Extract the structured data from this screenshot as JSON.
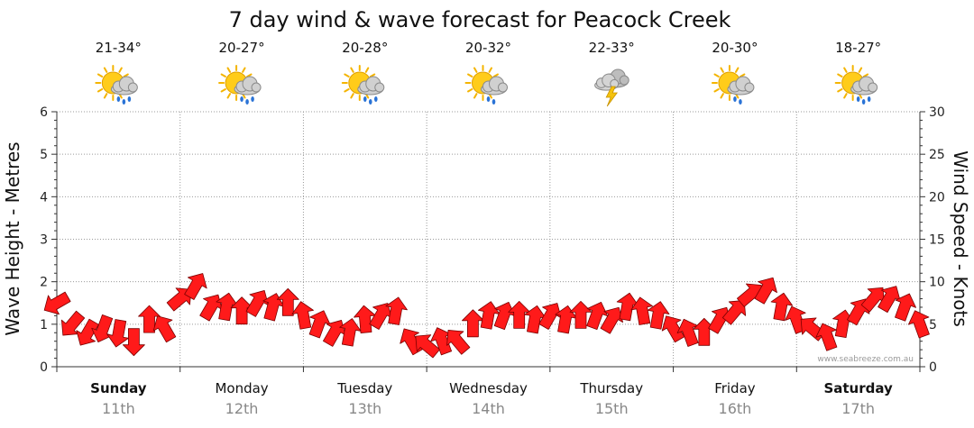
{
  "title": "7 day wind & wave forecast for Peacock Creek",
  "watermark": "www.seabreeze.com.au",
  "colors": {
    "arrow_fill": "#ff1a1a",
    "arrow_stroke": "#7a0000",
    "grid": "#9a9a9a",
    "axis": "#333333"
  },
  "days": [
    {
      "name": "Sunday",
      "date": "11th",
      "temp": "21-34°",
      "icon": "sun-cloud-rain-icon",
      "bold": true
    },
    {
      "name": "Monday",
      "date": "12th",
      "temp": "20-27°",
      "icon": "sun-cloud-rain-icon",
      "bold": false
    },
    {
      "name": "Tuesday",
      "date": "13th",
      "temp": "20-28°",
      "icon": "sun-cloud-rain-icon",
      "bold": false
    },
    {
      "name": "Wednesday",
      "date": "14th",
      "temp": "20-32°",
      "icon": "sun-cloud-drizzle-icon",
      "bold": false
    },
    {
      "name": "Thursday",
      "date": "15th",
      "temp": "22-33°",
      "icon": "thunderstorm-icon",
      "bold": false
    },
    {
      "name": "Friday",
      "date": "16th",
      "temp": "20-30°",
      "icon": "sun-cloud-drizzle-icon",
      "bold": false
    },
    {
      "name": "Saturday",
      "date": "17th",
      "temp": "18-27°",
      "icon": "sun-cloud-rain-icon",
      "bold": true
    }
  ],
  "chart_data": {
    "type": "line",
    "title": "7 day wind & wave forecast for Peacock Creek",
    "ylabel": "Wave Height - Metres",
    "y2label": "Wind Speed - Knots",
    "ylim": [
      0,
      6
    ],
    "y2lim": [
      0,
      30
    ],
    "yticks": [
      "0",
      "1",
      "2",
      "3",
      "4",
      "5",
      "6"
    ],
    "y2ticks": [
      "0",
      "5",
      "10",
      "15",
      "20",
      "25",
      "30"
    ],
    "grid": true,
    "xlim_hours": [
      0,
      168
    ],
    "series": [
      {
        "marker": "wind-arrow",
        "hours": [
          0,
          3,
          6,
          9,
          12,
          15,
          18,
          21,
          24,
          27,
          30,
          33,
          36,
          39,
          42,
          45,
          48,
          51,
          54,
          57,
          60,
          63,
          66,
          69,
          72,
          75,
          78,
          81,
          84,
          87,
          90,
          93,
          96,
          99,
          102,
          105,
          108,
          111,
          114,
          117,
          120,
          123,
          126,
          129,
          132,
          135,
          138,
          141,
          144,
          147,
          150,
          153,
          156,
          159,
          162,
          165,
          168
        ],
        "knots": [
          7.5,
          5,
          4,
          4.5,
          4,
          3,
          5.5,
          4.5,
          8,
          9.5,
          7,
          7,
          6.5,
          7.5,
          7,
          7.5,
          6,
          5,
          4,
          4,
          5.5,
          6,
          6.5,
          3,
          2.5,
          3,
          3,
          5,
          6,
          6,
          6,
          5.5,
          6,
          5.5,
          6,
          6,
          5.5,
          7,
          6.5,
          6,
          4.5,
          4,
          4,
          5.5,
          6.5,
          8.5,
          9,
          7,
          5.5,
          4.5,
          3.5,
          5,
          6.5,
          8,
          8,
          7,
          5
        ],
        "direction_deg": [
          150,
          130,
          120,
          110,
          100,
          90,
          270,
          240,
          320,
          300,
          300,
          280,
          270,
          300,
          285,
          270,
          260,
          290,
          300,
          280,
          265,
          300,
          280,
          240,
          220,
          250,
          230,
          270,
          280,
          290,
          270,
          280,
          300,
          280,
          270,
          290,
          300,
          280,
          260,
          280,
          240,
          250,
          270,
          300,
          310,
          320,
          300,
          280,
          250,
          220,
          250,
          280,
          300,
          310,
          300,
          290,
          250
        ]
      }
    ]
  }
}
